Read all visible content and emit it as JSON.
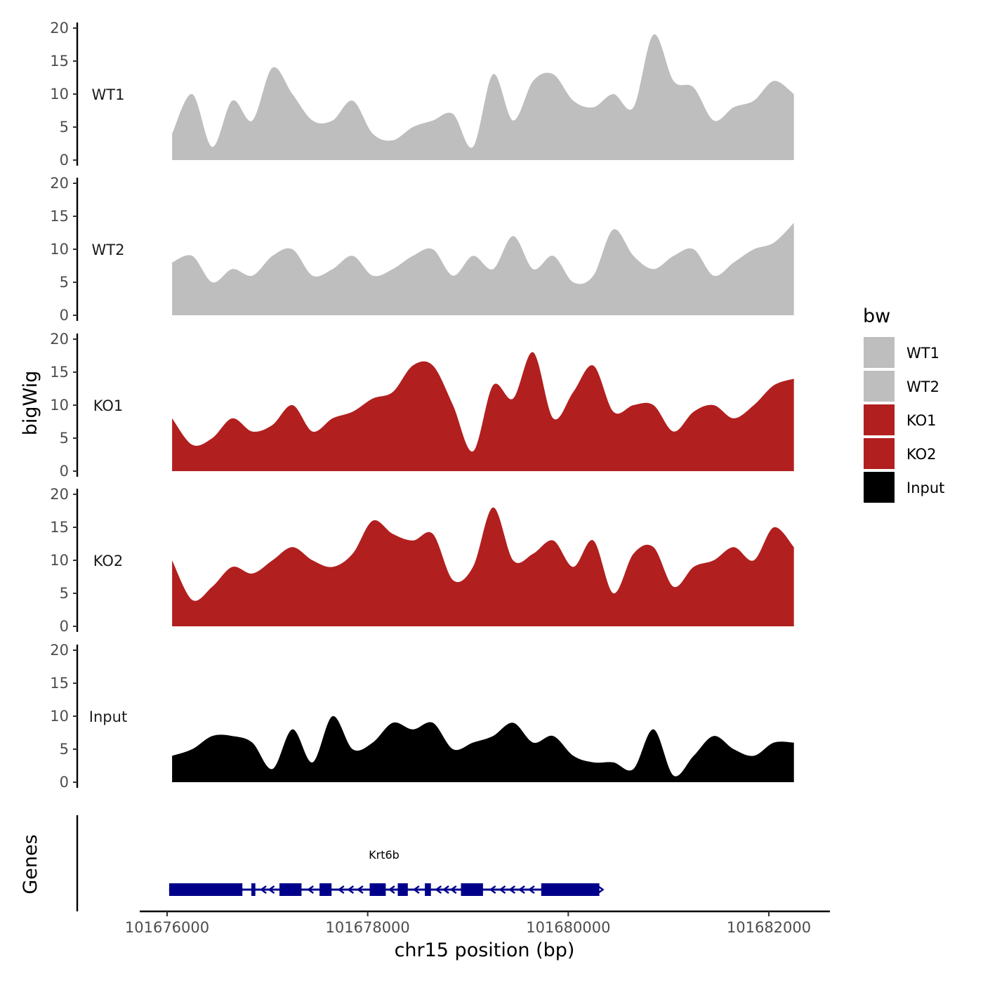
{
  "chart_data": {
    "type": "area",
    "xlabel": "chr15 position (bp)",
    "ylabel": "bigWig",
    "genes_label": "Genes",
    "xlim": [
      101675700,
      101682600
    ],
    "ylim": [
      0,
      20
    ],
    "x_ticks": [
      101676000,
      101678000,
      101680000,
      101682000
    ],
    "x_tick_labels": [
      "101676000",
      "101678000",
      "101680000",
      "101682000"
    ],
    "y_ticks": [
      0,
      5,
      10,
      15,
      20
    ],
    "y_tick_labels": [
      "0",
      "5",
      "10",
      "15",
      "20"
    ],
    "legend": {
      "title": "bw",
      "entries": [
        {
          "name": "WT1",
          "color": "#bebebe"
        },
        {
          "name": "WT2",
          "color": "#bebebe"
        },
        {
          "name": "KO1",
          "color": "#b21f1f"
        },
        {
          "name": "KO2",
          "color": "#b21f1f"
        },
        {
          "name": "Input",
          "color": "#000000"
        }
      ]
    },
    "x": [
      101676050,
      101676250,
      101676450,
      101676650,
      101676850,
      101677050,
      101677250,
      101677450,
      101677650,
      101677850,
      101678050,
      101678250,
      101678450,
      101678650,
      101678850,
      101679050,
      101679250,
      101679450,
      101679650,
      101679850,
      101680050,
      101680250,
      101680450,
      101680650,
      101680850,
      101681050,
      101681250,
      101681450,
      101681650,
      101681850,
      101682050,
      101682250
    ],
    "series": [
      {
        "name": "WT1",
        "color": "#bebebe",
        "values": [
          4,
          10,
          2,
          9,
          6,
          14,
          10,
          6,
          6,
          9,
          4,
          3,
          5,
          6,
          7,
          2,
          13,
          6,
          12,
          13,
          9,
          8,
          10,
          8,
          19,
          12,
          11,
          6,
          8,
          9,
          12,
          10
        ]
      },
      {
        "name": "WT2",
        "color": "#bebebe",
        "values": [
          8,
          9,
          5,
          7,
          6,
          9,
          10,
          6,
          7,
          9,
          6,
          7,
          9,
          10,
          6,
          9,
          7,
          12,
          7,
          9,
          5,
          6,
          13,
          9,
          7,
          9,
          10,
          6,
          8,
          10,
          11,
          14
        ]
      },
      {
        "name": "KO1",
        "color": "#b21f1f",
        "values": [
          8,
          4,
          5,
          8,
          6,
          7,
          10,
          6,
          8,
          9,
          11,
          12,
          16,
          16,
          10,
          3,
          13,
          11,
          18,
          8,
          12,
          16,
          9,
          10,
          10,
          6,
          9,
          10,
          8,
          10,
          13,
          14
        ]
      },
      {
        "name": "KO2",
        "color": "#b21f1f",
        "values": [
          10,
          4,
          6,
          9,
          8,
          10,
          12,
          10,
          9,
          11,
          16,
          14,
          13,
          14,
          7,
          9,
          18,
          10,
          11,
          13,
          9,
          13,
          5,
          11,
          12,
          6,
          9,
          10,
          12,
          10,
          15,
          12
        ]
      },
      {
        "name": "Input",
        "color": "#000000",
        "values": [
          4,
          5,
          7,
          7,
          6,
          2,
          8,
          3,
          10,
          5,
          6,
          9,
          8,
          9,
          5,
          6,
          7,
          9,
          6,
          7,
          4,
          3,
          3,
          2,
          8,
          1,
          4,
          7,
          5,
          4,
          6,
          6
        ]
      }
    ],
    "gene": {
      "name": "Krt6b",
      "strand": "-",
      "start": 101676020,
      "end": 101680310,
      "color": "#00008b",
      "exons": [
        [
          101676020,
          101676750
        ],
        [
          101676840,
          101676880
        ],
        [
          101677120,
          101677340
        ],
        [
          101677520,
          101677640
        ],
        [
          101678020,
          101678180
        ],
        [
          101678300,
          101678400
        ],
        [
          101678570,
          101678630
        ],
        [
          101678930,
          101679150
        ],
        [
          101679730,
          101680310
        ]
      ]
    }
  }
}
